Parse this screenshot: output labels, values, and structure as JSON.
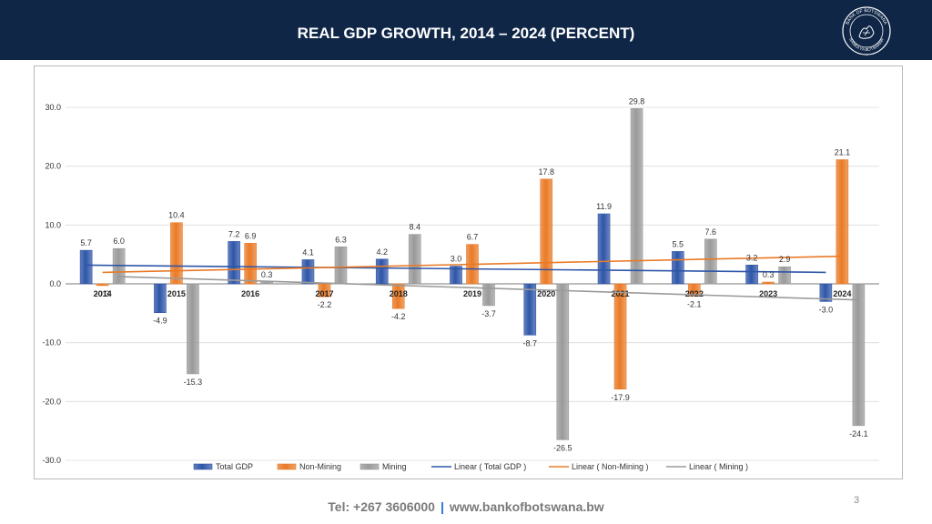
{
  "header": {
    "title": "REAL GDP GROWTH, 2014 – 2024 (PERCENT)"
  },
  "logo": {
    "top_text": "BANK OF BOTSWANA",
    "bottom_text": "BANKA YA BOTSWANA"
  },
  "colors": {
    "header_bg": "#0f2647",
    "total_gdp": "#2e55a8",
    "non_mining": "#e97a26",
    "mining": "#9a9a9a",
    "footer_sep": "#1f6fd1"
  },
  "chart_data": {
    "type": "bar",
    "title": "REAL GDP GROWTH, 2014 – 2024 (PERCENT)",
    "categories": [
      "2014",
      "2015",
      "2016",
      "2017",
      "2018",
      "2019",
      "2020",
      "2021",
      "2022",
      "2023",
      "2024"
    ],
    "series": [
      {
        "name": "Total GDP",
        "values": [
          5.7,
          -4.9,
          7.2,
          4.1,
          4.2,
          3.0,
          -8.7,
          11.9,
          5.5,
          3.2,
          -3.0
        ]
      },
      {
        "name": "Non-Mining",
        "values": [
          -0.3,
          10.4,
          6.9,
          -2.2,
          -4.2,
          6.7,
          17.8,
          -17.9,
          -2.1,
          0.3,
          21.1
        ]
      },
      {
        "name": "Mining",
        "values": [
          6.0,
          -15.3,
          0.3,
          6.3,
          8.4,
          -3.7,
          -26.5,
          29.8,
          7.6,
          2.9,
          -24.1
        ]
      }
    ],
    "trendlines": [
      {
        "name": "Linear ( Total GDP )",
        "of": "Total GDP"
      },
      {
        "name": "Linear ( Non-Mining )",
        "of": "Non-Mining"
      },
      {
        "name": "Linear ( Mining  )",
        "of": "Mining"
      }
    ],
    "ylim": [
      -30,
      30
    ],
    "yticks": [
      30,
      20,
      10,
      0,
      -10,
      -20,
      -30
    ],
    "ytick_labels": [
      "30.0",
      "20.0",
      "10.0",
      "0.0",
      "-10.0",
      "-20.0",
      "-30.0"
    ],
    "xlabel": "",
    "ylabel": "",
    "grid": true,
    "legend_position": "bottom"
  },
  "footer": {
    "tel": "Tel: +267 3606000",
    "separator": "|",
    "website": "www.bankofbotswana.bw"
  },
  "page_number": "3"
}
